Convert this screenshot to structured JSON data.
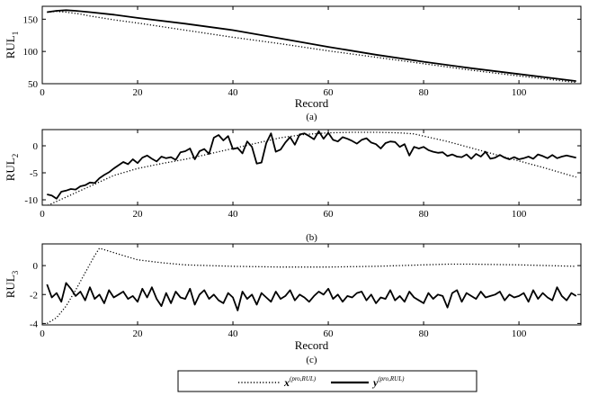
{
  "chart_data": [
    {
      "type": "line",
      "caption": "(a)",
      "xlabel": "Record",
      "ylabel": "RUL",
      "ylabel_sub": "1",
      "xlim": [
        0,
        113
      ],
      "ylim": [
        50,
        170
      ],
      "xticks": [
        0,
        20,
        40,
        60,
        80,
        100
      ],
      "yticks": [
        50,
        100,
        150
      ],
      "series": [
        {
          "name": "x(pro,RUL)",
          "style": "dotted",
          "x": [
            1,
            3,
            5,
            8,
            10,
            15,
            20,
            30,
            40,
            50,
            60,
            70,
            80,
            90,
            100,
            112
          ],
          "y": [
            161,
            162,
            161,
            158,
            155,
            149,
            144,
            133,
            122,
            112,
            101,
            91,
            81,
            71,
            62,
            52
          ]
        },
        {
          "name": "y(pro,RUL)",
          "style": "solid",
          "x": [
            1,
            3,
            5,
            7,
            10,
            15,
            20,
            30,
            40,
            50,
            60,
            70,
            80,
            90,
            100,
            112
          ],
          "y": [
            161,
            163,
            164,
            163,
            161,
            157,
            152,
            143,
            133,
            120,
            107,
            95,
            84,
            74,
            65,
            54
          ]
        }
      ]
    },
    {
      "type": "line",
      "caption": "(b)",
      "xlabel": "",
      "ylabel": "RUL",
      "ylabel_sub": "2",
      "xlim": [
        0,
        113
      ],
      "ylim": [
        -11,
        3
      ],
      "xticks": [
        0,
        20,
        40,
        60,
        80,
        100
      ],
      "yticks": [
        -10,
        -5,
        0
      ],
      "series": [
        {
          "name": "x(pro,RUL)",
          "style": "dotted",
          "x": [
            0,
            5,
            10,
            15,
            20,
            25,
            30,
            35,
            40,
            45,
            50,
            55,
            60,
            65,
            70,
            75,
            78,
            80,
            85,
            90,
            95,
            100,
            105,
            112
          ],
          "y": [
            -11.5,
            -9.5,
            -7.5,
            -5.5,
            -4.2,
            -3.3,
            -2.5,
            -1.5,
            -0.5,
            0.5,
            1.5,
            2.1,
            2.4,
            2.5,
            2.5,
            2.4,
            2.2,
            1.8,
            0.8,
            -0.4,
            -1.6,
            -2.8,
            -4.0,
            -5.8
          ]
        },
        {
          "name": "y(pro,RUL)",
          "style": "solid",
          "x": [
            1,
            2,
            3,
            4,
            5,
            6,
            7,
            8,
            9,
            10,
            11,
            12,
            13,
            14,
            15,
            16,
            17,
            18,
            19,
            20,
            21,
            22,
            23,
            24,
            25,
            26,
            27,
            28,
            29,
            30,
            31,
            32,
            33,
            34,
            35,
            36,
            37,
            38,
            39,
            40,
            41,
            42,
            43,
            44,
            45,
            46,
            47,
            48,
            49,
            50,
            51,
            52,
            53,
            54,
            55,
            56,
            57,
            58,
            59,
            60,
            61,
            62,
            63,
            64,
            65,
            66,
            67,
            68,
            69,
            70,
            71,
            72,
            73,
            74,
            75,
            76,
            77,
            78,
            79,
            80,
            81,
            82,
            83,
            84,
            85,
            86,
            87,
            88,
            89,
            90,
            91,
            92,
            93,
            94,
            95,
            96,
            97,
            98,
            99,
            100,
            101,
            102,
            103,
            104,
            105,
            106,
            107,
            108,
            109,
            110,
            111,
            112
          ],
          "y": [
            -9.0,
            -9.2,
            -9.8,
            -8.5,
            -8.3,
            -8.0,
            -8.1,
            -7.5,
            -7.3,
            -6.8,
            -6.9,
            -6.0,
            -5.4,
            -4.9,
            -4.2,
            -3.6,
            -3.0,
            -3.4,
            -2.5,
            -3.2,
            -2.2,
            -1.8,
            -2.4,
            -2.9,
            -2.0,
            -2.3,
            -2.1,
            -2.6,
            -1.2,
            -1.0,
            -0.5,
            -2.5,
            -1.0,
            -0.6,
            -1.5,
            1.5,
            2.0,
            1.0,
            1.8,
            -0.6,
            -0.4,
            -1.4,
            0.8,
            -0.2,
            -3.3,
            -3.1,
            0.5,
            2.3,
            -1.1,
            -0.7,
            0.6,
            1.6,
            0.2,
            2.1,
            2.3,
            1.8,
            1.2,
            2.7,
            1.3,
            2.4,
            1.1,
            0.8,
            1.6,
            1.3,
            0.9,
            0.4,
            1.1,
            1.4,
            0.6,
            0.3,
            -0.5,
            0.5,
            0.8,
            0.7,
            -0.2,
            0.3,
            -1.8,
            -0.2,
            -0.5,
            -0.2,
            -0.8,
            -1.1,
            -1.3,
            -1.2,
            -1.9,
            -1.6,
            -2.0,
            -2.1,
            -1.6,
            -2.4,
            -1.5,
            -2.0,
            -1.1,
            -2.4,
            -2.2,
            -1.7,
            -2.2,
            -2.5,
            -2.1,
            -2.5,
            -2.3,
            -2.0,
            -2.4,
            -1.6,
            -1.9,
            -2.3,
            -1.7,
            -2.3,
            -2.0,
            -1.8,
            -2.0,
            -2.2
          ]
        }
      ]
    },
    {
      "type": "line",
      "caption": "(c)",
      "xlabel": "Record",
      "ylabel": "RUL",
      "ylabel_sub": "3",
      "xlim": [
        0,
        113
      ],
      "ylim": [
        -4.1,
        1.5
      ],
      "xticks": [
        0,
        20,
        40,
        60,
        80,
        100
      ],
      "yticks": [
        -4,
        -2,
        0
      ],
      "series": [
        {
          "name": "x(pro,RUL)",
          "style": "dotted",
          "x": [
            1,
            3,
            5,
            7,
            9,
            11,
            12,
            14,
            17,
            20,
            25,
            30,
            40,
            50,
            60,
            70,
            80,
            85,
            90,
            100,
            112
          ],
          "y": [
            -4.0,
            -3.6,
            -2.8,
            -1.7,
            -0.5,
            0.7,
            1.2,
            1.0,
            0.7,
            0.4,
            0.2,
            0.05,
            -0.05,
            -0.1,
            -0.1,
            -0.05,
            0.05,
            0.1,
            0.1,
            0.05,
            -0.05
          ]
        },
        {
          "name": "y(pro,RUL)",
          "style": "solid",
          "x": [
            1,
            2,
            3,
            4,
            5,
            6,
            7,
            8,
            9,
            10,
            11,
            12,
            13,
            14,
            15,
            16,
            17,
            18,
            19,
            20,
            21,
            22,
            23,
            24,
            25,
            26,
            27,
            28,
            29,
            30,
            31,
            32,
            33,
            34,
            35,
            36,
            37,
            38,
            39,
            40,
            41,
            42,
            43,
            44,
            45,
            46,
            47,
            48,
            49,
            50,
            51,
            52,
            53,
            54,
            55,
            56,
            57,
            58,
            59,
            60,
            61,
            62,
            63,
            64,
            65,
            66,
            67,
            68,
            69,
            70,
            71,
            72,
            73,
            74,
            75,
            76,
            77,
            78,
            79,
            80,
            81,
            82,
            83,
            84,
            85,
            86,
            87,
            88,
            89,
            90,
            91,
            92,
            93,
            94,
            95,
            96,
            97,
            98,
            99,
            100,
            101,
            102,
            103,
            104,
            105,
            106,
            107,
            108,
            109,
            110,
            111,
            112
          ],
          "y": [
            -1.3,
            -2.2,
            -1.9,
            -2.5,
            -1.2,
            -1.6,
            -2.1,
            -1.8,
            -2.4,
            -1.5,
            -2.3,
            -2.0,
            -2.6,
            -1.7,
            -2.2,
            -2.0,
            -1.8,
            -2.3,
            -2.1,
            -2.5,
            -1.6,
            -2.2,
            -1.5,
            -2.3,
            -2.8,
            -1.9,
            -2.6,
            -1.8,
            -2.2,
            -2.3,
            -1.6,
            -2.7,
            -2.0,
            -1.7,
            -2.3,
            -2.0,
            -2.4,
            -2.6,
            -1.9,
            -2.2,
            -3.1,
            -1.8,
            -2.3,
            -2.0,
            -2.7,
            -1.9,
            -2.2,
            -2.5,
            -1.8,
            -2.3,
            -2.1,
            -1.7,
            -2.4,
            -2.0,
            -2.2,
            -2.5,
            -2.1,
            -1.8,
            -2.0,
            -1.6,
            -2.3,
            -2.0,
            -2.5,
            -2.1,
            -2.2,
            -1.9,
            -1.8,
            -2.4,
            -2.0,
            -2.6,
            -2.2,
            -2.3,
            -1.7,
            -2.4,
            -2.1,
            -2.5,
            -1.8,
            -2.2,
            -2.4,
            -2.6,
            -1.9,
            -2.3,
            -2.0,
            -2.1,
            -2.9,
            -1.9,
            -1.7,
            -2.5,
            -1.9,
            -2.1,
            -2.3,
            -1.8,
            -2.2,
            -2.1,
            -2.0,
            -1.8,
            -2.4,
            -2.0,
            -2.2,
            -2.1,
            -1.9,
            -2.5,
            -1.7,
            -2.3,
            -1.9,
            -2.2,
            -2.4,
            -1.5,
            -2.1,
            -2.4,
            -1.9,
            -2.1
          ]
        }
      ]
    }
  ],
  "legend": {
    "entries": [
      {
        "style": "dotted",
        "sym": "x",
        "sup": "(pro,RUL)"
      },
      {
        "style": "solid",
        "sym": "y",
        "sup": "(pro,RUL)"
      }
    ]
  }
}
